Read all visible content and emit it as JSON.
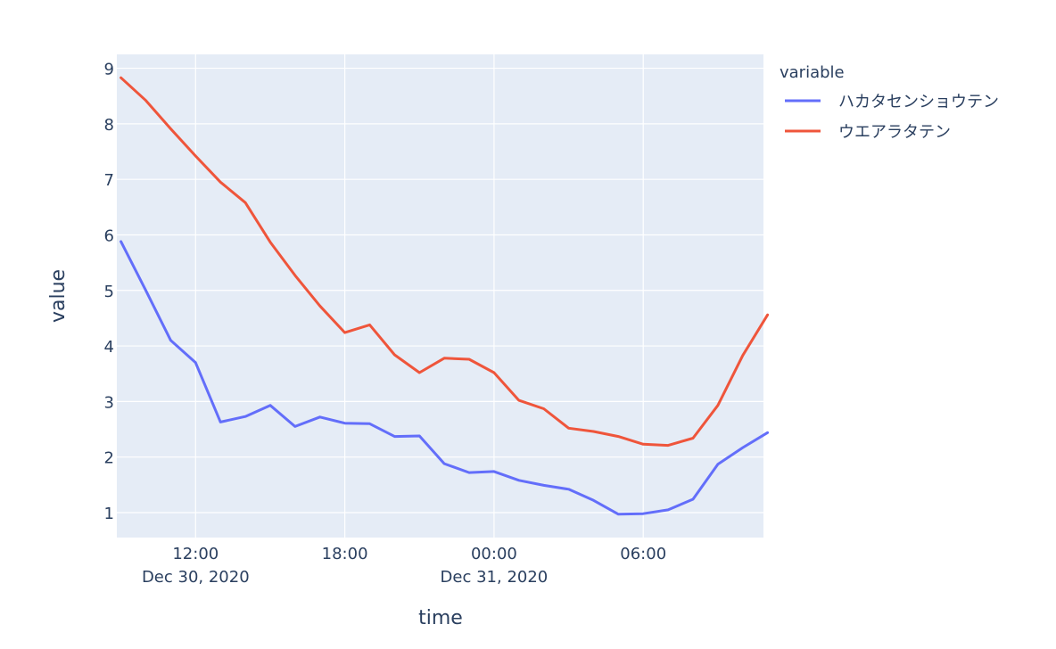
{
  "chart_data": {
    "type": "line",
    "xlabel": "time",
    "ylabel": "value",
    "x_start": "2020-12-30T09:00",
    "x_step_hours": 1,
    "xlim": [
      "2020-12-30T08:50",
      "2020-12-31T10:50"
    ],
    "ylim": [
      0.55,
      9.25
    ],
    "y_ticks": [
      1,
      2,
      3,
      4,
      5,
      6,
      7,
      8,
      9
    ],
    "x_ticks": [
      {
        "time": "2020-12-30T12:00",
        "label": "12:00",
        "sublabel": "Dec 30, 2020"
      },
      {
        "time": "2020-12-30T18:00",
        "label": "18:00",
        "sublabel": ""
      },
      {
        "time": "2020-12-31T00:00",
        "label": "00:00",
        "sublabel": "Dec 31, 2020"
      },
      {
        "time": "2020-12-31T06:00",
        "label": "06:00",
        "sublabel": ""
      }
    ],
    "grid": true,
    "legend": {
      "title": "variable",
      "placement": "top-right-outside"
    },
    "series": [
      {
        "name": "ハカタセンショウテン",
        "color": "#636efa",
        "values": [
          5.88,
          5.0,
          4.1,
          3.7,
          2.63,
          2.73,
          2.93,
          2.55,
          2.72,
          2.61,
          2.6,
          2.37,
          2.38,
          1.88,
          1.72,
          1.74,
          1.58,
          1.49,
          1.42,
          1.22,
          0.97,
          0.98,
          1.05,
          1.24,
          1.87,
          2.17,
          2.44
        ]
      },
      {
        "name": "ウエアラタテン",
        "color": "#ef553b",
        "values": [
          8.83,
          8.42,
          7.91,
          7.42,
          6.95,
          6.58,
          5.87,
          5.27,
          4.72,
          4.24,
          4.38,
          3.84,
          3.52,
          3.78,
          3.76,
          3.52,
          3.02,
          2.87,
          2.52,
          2.46,
          2.37,
          2.23,
          2.21,
          2.34,
          2.93,
          3.83,
          4.56
        ]
      }
    ]
  }
}
